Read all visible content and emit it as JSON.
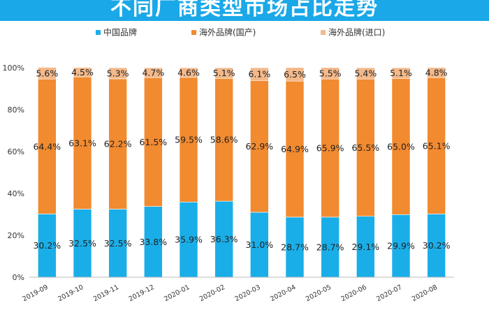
{
  "title": "不同厂商类型市场占比走势",
  "colors": {
    "title_bg": "#1aa8e8",
    "domestic": "#1aaee8",
    "foreign_domestic": "#f28a2f",
    "foreign_import": "#f3b98b"
  },
  "chart_data": {
    "type": "bar",
    "stacked": true,
    "title": "不同厂商类型市场占比走势",
    "categories": [
      "2019-09",
      "2019-10",
      "2019-11",
      "2019-12",
      "2020-01",
      "2020-02",
      "2020-03",
      "2020-04",
      "2020-05",
      "2020-06",
      "2020-07",
      "2020-08"
    ],
    "series": [
      {
        "name": "中国品牌",
        "color": "#1aaee8",
        "values": [
          30.2,
          32.5,
          32.5,
          33.8,
          35.9,
          36.3,
          31.0,
          28.7,
          28.7,
          29.1,
          29.9,
          30.2
        ],
        "labels": [
          "30.2%",
          "32.5%",
          "32.5%",
          "33.8%",
          "35.9%",
          "36.3%",
          "31.0%",
          "28.7%",
          "28.7%",
          "29.1%",
          "29.9%",
          "30.2%"
        ]
      },
      {
        "name": "海外品牌(国产)",
        "color": "#f28a2f",
        "values": [
          64.4,
          63.1,
          62.2,
          61.5,
          59.5,
          58.6,
          62.9,
          64.9,
          65.9,
          65.5,
          65.0,
          65.1
        ],
        "labels": [
          "64.4%",
          "63.1%",
          "62.2%",
          "61.5%",
          "59.5%",
          "58.6%",
          "62.9%",
          "64.9%",
          "65.9%",
          "65.5%",
          "65.0%",
          "65.1%"
        ]
      },
      {
        "name": "海外品牌(进口)",
        "color": "#f3b98b",
        "values": [
          5.6,
          4.5,
          5.3,
          4.7,
          4.6,
          5.1,
          6.1,
          6.5,
          5.5,
          5.4,
          5.1,
          4.8
        ],
        "labels": [
          "5.6%",
          "4.5%",
          "5.3%",
          "4.7%",
          "4.6%",
          "5.1%",
          "6.1%",
          "6.5%",
          "5.5%",
          "5.4%",
          "5.1%",
          "4.8%"
        ]
      }
    ],
    "ylim": [
      0,
      100
    ],
    "yticks": [
      0,
      20,
      40,
      60,
      80,
      100
    ],
    "ytick_labels": [
      "0%",
      "20%",
      "40%",
      "60%",
      "80%",
      "100%"
    ],
    "grid": false,
    "legend_position": "top"
  }
}
